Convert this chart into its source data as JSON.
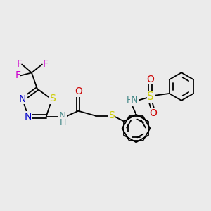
{
  "background_color": "#ebebeb",
  "figsize": [
    3.0,
    3.0
  ],
  "dpi": 100,
  "line_color": "black",
  "line_width": 1.3,
  "colors": {
    "S": "#cccc00",
    "N": "#0000cc",
    "O": "#cc0000",
    "F": "#cc00cc",
    "NH": "#448888",
    "black": "black"
  }
}
